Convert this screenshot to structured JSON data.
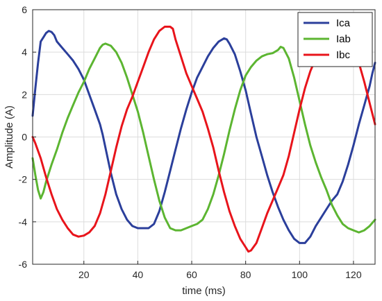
{
  "chart_data": {
    "type": "line",
    "title": "",
    "xlabel": "time (ms)",
    "ylabel": "Amplitude (A)",
    "xlim": [
      1,
      128
    ],
    "ylim": [
      -6,
      6
    ],
    "xticks": [
      20,
      40,
      60,
      80,
      100,
      120
    ],
    "yticks": [
      -6,
      -4,
      -2,
      0,
      2,
      4,
      6
    ],
    "grid": true,
    "legend_position": "top-right",
    "series": [
      {
        "name": "Ica",
        "color": "#2b3f9b",
        "points": [
          [
            1,
            1.0
          ],
          [
            2,
            2.3
          ],
          [
            3,
            3.5
          ],
          [
            4,
            4.5
          ],
          [
            5,
            4.7
          ],
          [
            6,
            4.9
          ],
          [
            7,
            5.0
          ],
          [
            8,
            4.95
          ],
          [
            9,
            4.8
          ],
          [
            10,
            4.5
          ],
          [
            12,
            4.2
          ],
          [
            14,
            3.9
          ],
          [
            16,
            3.6
          ],
          [
            18,
            3.2
          ],
          [
            20,
            2.7
          ],
          [
            22,
            2.0
          ],
          [
            24,
            1.3
          ],
          [
            26,
            0.6
          ],
          [
            27,
            0.1
          ],
          [
            28,
            -0.5
          ],
          [
            30,
            -1.7
          ],
          [
            32,
            -2.7
          ],
          [
            34,
            -3.4
          ],
          [
            36,
            -3.9
          ],
          [
            38,
            -4.2
          ],
          [
            40,
            -4.3
          ],
          [
            42,
            -4.3
          ],
          [
            44,
            -4.3
          ],
          [
            46,
            -4.1
          ],
          [
            48,
            -3.5
          ],
          [
            50,
            -2.6
          ],
          [
            52,
            -1.6
          ],
          [
            54,
            -0.6
          ],
          [
            56,
            0.4
          ],
          [
            58,
            1.3
          ],
          [
            60,
            2.1
          ],
          [
            62,
            2.8
          ],
          [
            64,
            3.3
          ],
          [
            66,
            3.8
          ],
          [
            68,
            4.2
          ],
          [
            70,
            4.5
          ],
          [
            72,
            4.65
          ],
          [
            73,
            4.6
          ],
          [
            74,
            4.4
          ],
          [
            76,
            3.9
          ],
          [
            78,
            3.1
          ],
          [
            80,
            2.2
          ],
          [
            82,
            1.1
          ],
          [
            84,
            0.0
          ],
          [
            86,
            -0.9
          ],
          [
            88,
            -1.8
          ],
          [
            90,
            -2.6
          ],
          [
            92,
            -3.3
          ],
          [
            94,
            -3.9
          ],
          [
            96,
            -4.4
          ],
          [
            98,
            -4.8
          ],
          [
            100,
            -5.0
          ],
          [
            102,
            -5.0
          ],
          [
            104,
            -4.7
          ],
          [
            106,
            -4.2
          ],
          [
            108,
            -3.8
          ],
          [
            110,
            -3.4
          ],
          [
            112,
            -3.0
          ],
          [
            114,
            -2.7
          ],
          [
            116,
            -2.1
          ],
          [
            118,
            -1.3
          ],
          [
            120,
            -0.4
          ],
          [
            122,
            0.6
          ],
          [
            124,
            1.5
          ],
          [
            126,
            2.4
          ],
          [
            127,
            3.0
          ],
          [
            128,
            3.5
          ]
        ]
      },
      {
        "name": "Iab",
        "color": "#5cb531",
        "points": [
          [
            1,
            -1.0
          ],
          [
            2,
            -1.8
          ],
          [
            3,
            -2.5
          ],
          [
            4,
            -2.9
          ],
          [
            5,
            -2.6
          ],
          [
            6,
            -2.1
          ],
          [
            8,
            -1.3
          ],
          [
            10,
            -0.6
          ],
          [
            12,
            0.2
          ],
          [
            14,
            0.9
          ],
          [
            16,
            1.5
          ],
          [
            18,
            2.1
          ],
          [
            20,
            2.6
          ],
          [
            22,
            3.2
          ],
          [
            24,
            3.7
          ],
          [
            26,
            4.2
          ],
          [
            27,
            4.35
          ],
          [
            28,
            4.4
          ],
          [
            30,
            4.3
          ],
          [
            32,
            4.0
          ],
          [
            34,
            3.5
          ],
          [
            36,
            2.8
          ],
          [
            38,
            2.0
          ],
          [
            40,
            1.2
          ],
          [
            42,
            0.2
          ],
          [
            44,
            -0.9
          ],
          [
            46,
            -2.0
          ],
          [
            48,
            -3.0
          ],
          [
            50,
            -3.8
          ],
          [
            52,
            -4.3
          ],
          [
            54,
            -4.4
          ],
          [
            56,
            -4.4
          ],
          [
            58,
            -4.3
          ],
          [
            60,
            -4.2
          ],
          [
            62,
            -4.1
          ],
          [
            64,
            -3.9
          ],
          [
            66,
            -3.4
          ],
          [
            68,
            -2.7
          ],
          [
            70,
            -1.8
          ],
          [
            72,
            -0.8
          ],
          [
            74,
            0.3
          ],
          [
            76,
            1.3
          ],
          [
            78,
            2.2
          ],
          [
            80,
            2.9
          ],
          [
            82,
            3.3
          ],
          [
            84,
            3.6
          ],
          [
            86,
            3.8
          ],
          [
            88,
            3.9
          ],
          [
            90,
            3.95
          ],
          [
            92,
            4.1
          ],
          [
            93,
            4.25
          ],
          [
            94,
            4.2
          ],
          [
            96,
            3.7
          ],
          [
            98,
            2.8
          ],
          [
            100,
            1.7
          ],
          [
            102,
            0.6
          ],
          [
            104,
            -0.4
          ],
          [
            106,
            -1.2
          ],
          [
            108,
            -1.9
          ],
          [
            110,
            -2.5
          ],
          [
            112,
            -3.2
          ],
          [
            114,
            -3.7
          ],
          [
            116,
            -4.1
          ],
          [
            118,
            -4.3
          ],
          [
            120,
            -4.4
          ],
          [
            122,
            -4.5
          ],
          [
            124,
            -4.4
          ],
          [
            126,
            -4.2
          ],
          [
            128,
            -3.9
          ]
        ]
      },
      {
        "name": "Ibc",
        "color": "#e8141b",
        "points": [
          [
            1,
            0.0
          ],
          [
            2,
            -0.3
          ],
          [
            4,
            -1.0
          ],
          [
            6,
            -1.9
          ],
          [
            8,
            -2.7
          ],
          [
            10,
            -3.4
          ],
          [
            12,
            -3.9
          ],
          [
            14,
            -4.3
          ],
          [
            16,
            -4.6
          ],
          [
            18,
            -4.7
          ],
          [
            20,
            -4.65
          ],
          [
            22,
            -4.5
          ],
          [
            24,
            -4.2
          ],
          [
            26,
            -3.6
          ],
          [
            28,
            -2.7
          ],
          [
            30,
            -1.6
          ],
          [
            32,
            -0.5
          ],
          [
            34,
            0.5
          ],
          [
            36,
            1.3
          ],
          [
            38,
            1.9
          ],
          [
            40,
            2.6
          ],
          [
            42,
            3.3
          ],
          [
            44,
            4.0
          ],
          [
            46,
            4.6
          ],
          [
            48,
            5.0
          ],
          [
            50,
            5.2
          ],
          [
            52,
            5.2
          ],
          [
            53,
            5.1
          ],
          [
            54,
            4.6
          ],
          [
            56,
            3.8
          ],
          [
            58,
            3.0
          ],
          [
            60,
            2.4
          ],
          [
            62,
            1.8
          ],
          [
            64,
            1.2
          ],
          [
            66,
            0.4
          ],
          [
            68,
            -0.5
          ],
          [
            70,
            -1.6
          ],
          [
            72,
            -2.6
          ],
          [
            74,
            -3.5
          ],
          [
            76,
            -4.2
          ],
          [
            78,
            -4.8
          ],
          [
            80,
            -5.2
          ],
          [
            81,
            -5.4
          ],
          [
            82,
            -5.35
          ],
          [
            84,
            -5.0
          ],
          [
            86,
            -4.3
          ],
          [
            88,
            -3.6
          ],
          [
            90,
            -3.0
          ],
          [
            92,
            -2.4
          ],
          [
            94,
            -1.8
          ],
          [
            96,
            -0.9
          ],
          [
            98,
            0.2
          ],
          [
            100,
            1.3
          ],
          [
            102,
            2.3
          ],
          [
            104,
            3.1
          ],
          [
            106,
            3.7
          ],
          [
            108,
            4.1
          ],
          [
            110,
            4.3
          ],
          [
            112,
            4.4
          ],
          [
            114,
            4.45
          ],
          [
            116,
            4.4
          ],
          [
            118,
            4.3
          ],
          [
            120,
            4.1
          ],
          [
            122,
            3.5
          ],
          [
            124,
            2.6
          ],
          [
            126,
            1.6
          ],
          [
            128,
            0.6
          ]
        ]
      }
    ]
  }
}
